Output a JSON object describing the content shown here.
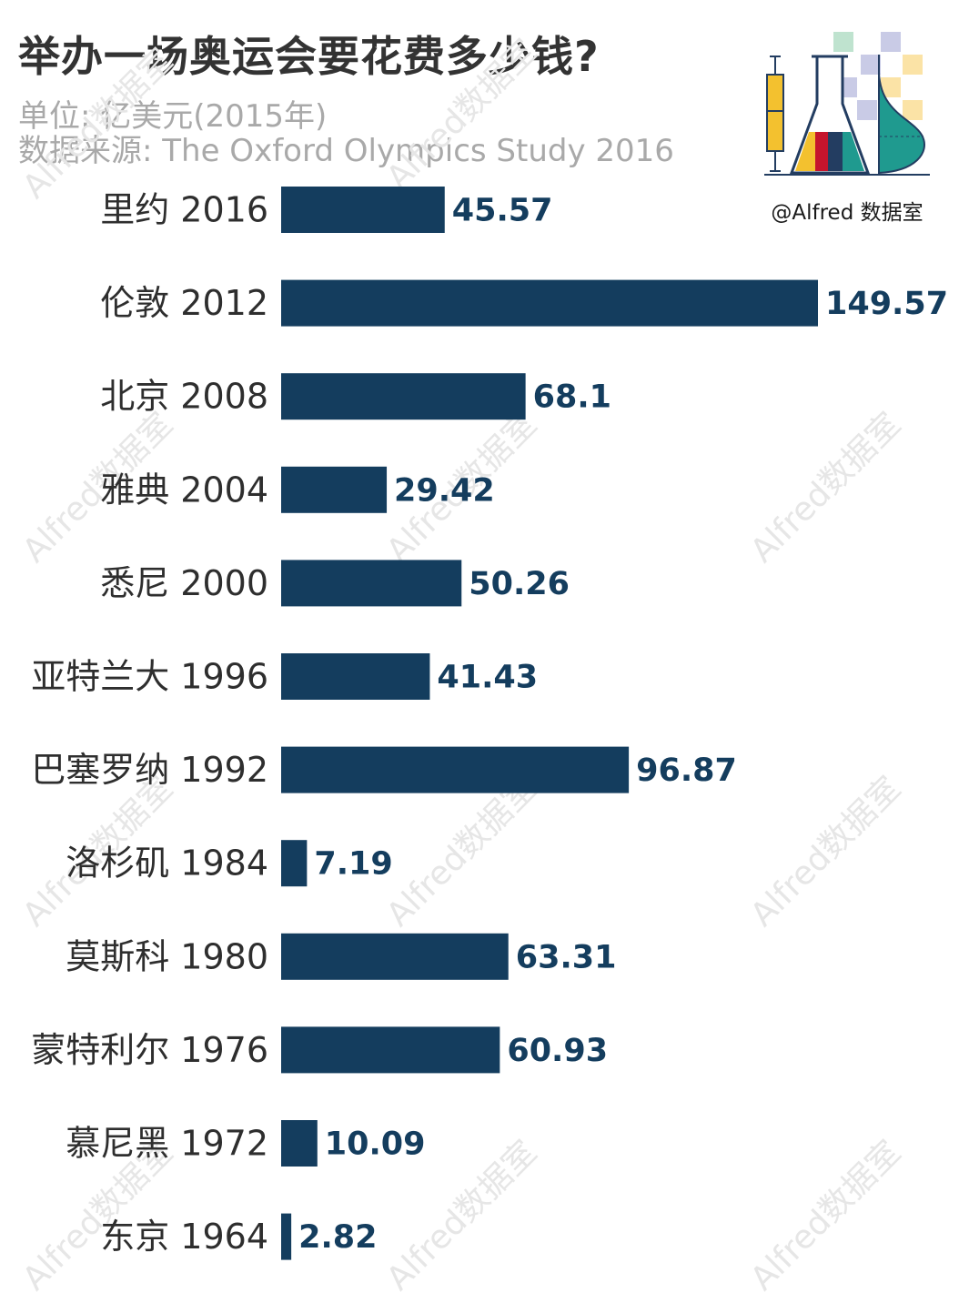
{
  "title": "举办一场奥运会要花费多少钱?",
  "unit": "单位: 亿美元(2015年)",
  "source": "数据来源: The Oxford Olympics Study 2016",
  "watermark": "Alfred数据室",
  "logo": {
    "text": "@Alfred 数据室",
    "icon": "flask-chart-logo",
    "colors": [
      "#f3c12f",
      "#c5152d",
      "#233d61",
      "#1f9a8f"
    ]
  },
  "bar_color": "#143d5e",
  "value_color": "#143d5e",
  "chart_data": {
    "type": "bar",
    "orientation": "horizontal",
    "categories": [
      "里约 2016",
      "伦敦 2012",
      "北京 2008",
      "雅典 2004",
      "悉尼 2000",
      "亚特兰大 1996",
      "巴塞罗纳 1992",
      "洛杉矶 1984",
      "莫斯科 1980",
      "蒙特利尔 1976",
      "慕尼黑 1972",
      "东京 1964"
    ],
    "values": [
      45.57,
      149.57,
      68.1,
      29.42,
      50.26,
      41.43,
      96.87,
      7.19,
      63.31,
      60.93,
      10.09,
      2.82
    ],
    "value_labels": [
      "45.57",
      "149.57",
      "68.1",
      "29.42",
      "50.26",
      "41.43",
      "96.87",
      "7.19",
      "63.31",
      "60.93",
      "10.09",
      "2.82"
    ],
    "title": "举办一场奥运会要花费多少钱?",
    "xlabel": "",
    "ylabel": "",
    "xlim": [
      0,
      149.57
    ],
    "grid": false,
    "legend": "none"
  }
}
